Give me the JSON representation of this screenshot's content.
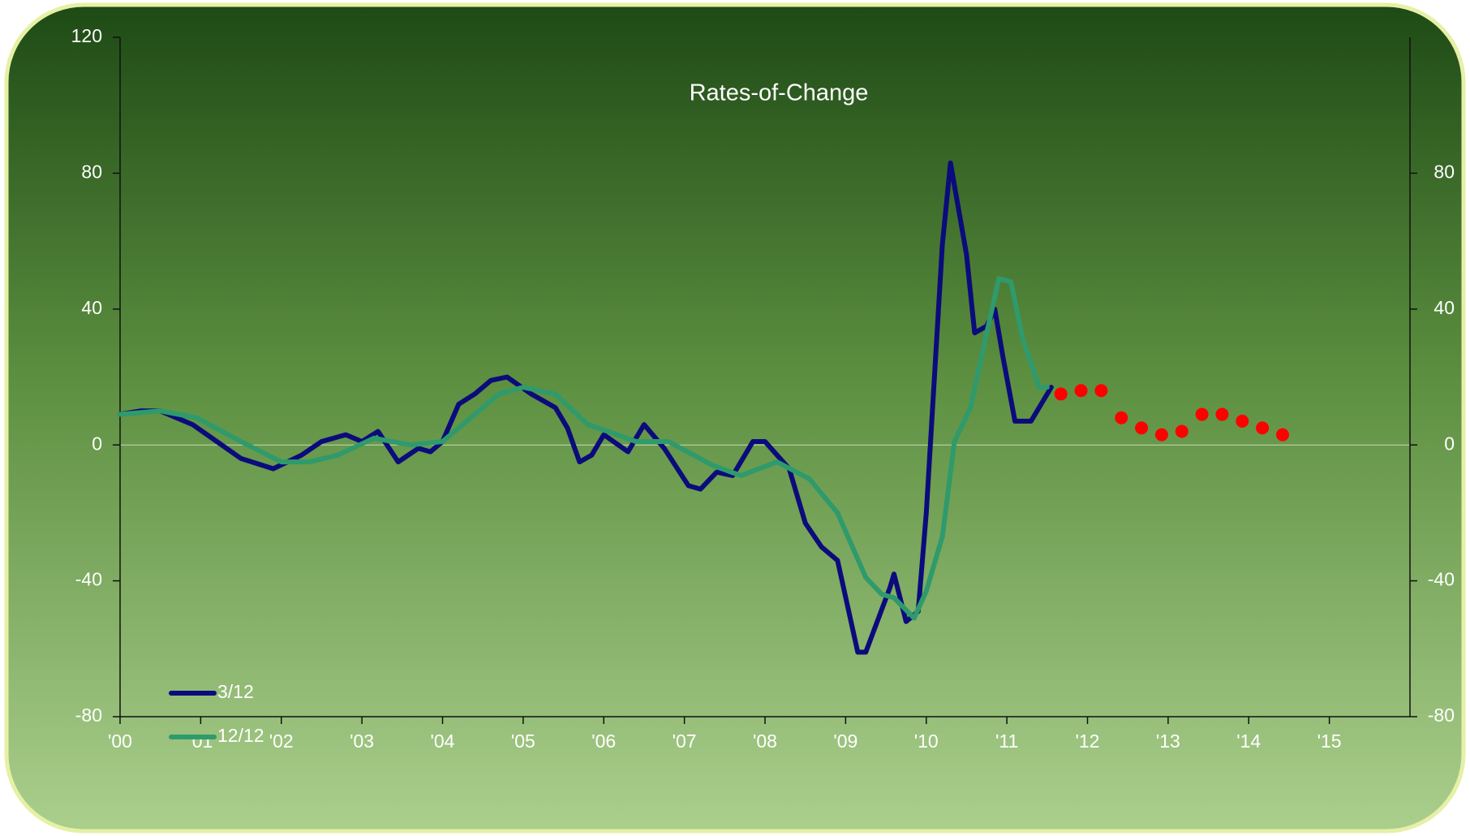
{
  "chart_data": {
    "type": "line",
    "title": "Rates-of-Change",
    "xlim": [
      2000,
      2016
    ],
    "xticks": [
      {
        "value": 2000,
        "label": "'00"
      },
      {
        "value": 2001,
        "label": "'01"
      },
      {
        "value": 2002,
        "label": "'02"
      },
      {
        "value": 2003,
        "label": "'03"
      },
      {
        "value": 2004,
        "label": "'04"
      },
      {
        "value": 2005,
        "label": "'05"
      },
      {
        "value": 2006,
        "label": "'06"
      },
      {
        "value": 2007,
        "label": "'07"
      },
      {
        "value": 2008,
        "label": "'08"
      },
      {
        "value": 2009,
        "label": "'09"
      },
      {
        "value": 2010,
        "label": "'10"
      },
      {
        "value": 2011,
        "label": "'11"
      },
      {
        "value": 2012,
        "label": "'12"
      },
      {
        "value": 2013,
        "label": "'13"
      },
      {
        "value": 2014,
        "label": "'14"
      },
      {
        "value": 2015,
        "label": "'15"
      }
    ],
    "ylim": [
      -80,
      120
    ],
    "yticks": [
      -80,
      -40,
      0,
      40,
      80,
      120
    ],
    "y2lim": [
      -80,
      120
    ],
    "y2ticks": [
      -80,
      -40,
      0,
      40,
      80
    ],
    "zero_line": true,
    "legend": "lower left",
    "series": [
      {
        "name": "3/12",
        "color": "#0b0b7c",
        "x": [
          2000.0,
          2000.25,
          2000.5,
          2000.9,
          2001.2,
          2001.5,
          2001.9,
          2002.25,
          2002.5,
          2002.8,
          2003.0,
          2003.2,
          2003.45,
          2003.7,
          2003.85,
          2004.0,
          2004.2,
          2004.4,
          2004.6,
          2004.8,
          2005.1,
          2005.4,
          2005.55,
          2005.7,
          2005.85,
          2006.0,
          2006.3,
          2006.5,
          2006.75,
          2007.05,
          2007.2,
          2007.4,
          2007.6,
          2007.85,
          2008.0,
          2008.3,
          2008.5,
          2008.7,
          2008.9,
          2009.15,
          2009.25,
          2009.55,
          2009.6,
          2009.75,
          2009.9,
          2010.0,
          2010.2,
          2010.3,
          2010.5,
          2010.6,
          2010.75,
          2010.85,
          2010.95,
          2011.1,
          2011.3,
          2011.55
        ],
        "values": [
          9,
          10,
          10,
          6,
          1,
          -4,
          -7,
          -3,
          1,
          3,
          1,
          4,
          -5,
          -1,
          -2,
          1,
          12,
          15,
          19,
          20,
          15,
          11,
          5,
          -5,
          -3,
          3,
          -2,
          6,
          -1,
          -12,
          -13,
          -8,
          -9,
          1,
          1,
          -7,
          -23,
          -30,
          -34,
          -61,
          -61,
          -42,
          -38,
          -52,
          -49,
          -20,
          59,
          83,
          56,
          33,
          35,
          40,
          26,
          7,
          7,
          17
        ]
      },
      {
        "name": "12/12",
        "color": "#2f9a6c",
        "x": [
          2000.0,
          2000.5,
          2000.95,
          2001.5,
          2002.0,
          2002.35,
          2002.7,
          2003.15,
          2003.6,
          2004.0,
          2004.3,
          2004.7,
          2005.0,
          2005.4,
          2005.8,
          2006.05,
          2006.4,
          2006.8,
          2007.35,
          2007.7,
          2008.15,
          2008.55,
          2008.9,
          2009.25,
          2009.45,
          2009.6,
          2009.85,
          2010.0,
          2010.2,
          2010.35,
          2010.55,
          2010.75,
          2010.9,
          2011.05,
          2011.2,
          2011.4,
          2011.5
        ],
        "values": [
          9,
          10,
          8,
          1,
          -5,
          -5,
          -3,
          2,
          0,
          1,
          7,
          15,
          17,
          15,
          6,
          4,
          1,
          1,
          -6,
          -9,
          -5,
          -10,
          -20,
          -39,
          -44,
          -45,
          -51,
          -43,
          -27,
          1,
          11,
          33,
          49,
          48,
          31,
          17,
          17
        ]
      },
      {
        "color": "#ff0000",
        "style": "markers",
        "x": [
          2011.67,
          2011.92,
          2012.17,
          2012.42,
          2012.67,
          2012.92,
          2013.17,
          2013.42,
          2013.67,
          2013.92,
          2014.17,
          2014.42
        ],
        "values": [
          15,
          16,
          16,
          8,
          5,
          3,
          4,
          9,
          9,
          7,
          5,
          3
        ]
      }
    ]
  }
}
